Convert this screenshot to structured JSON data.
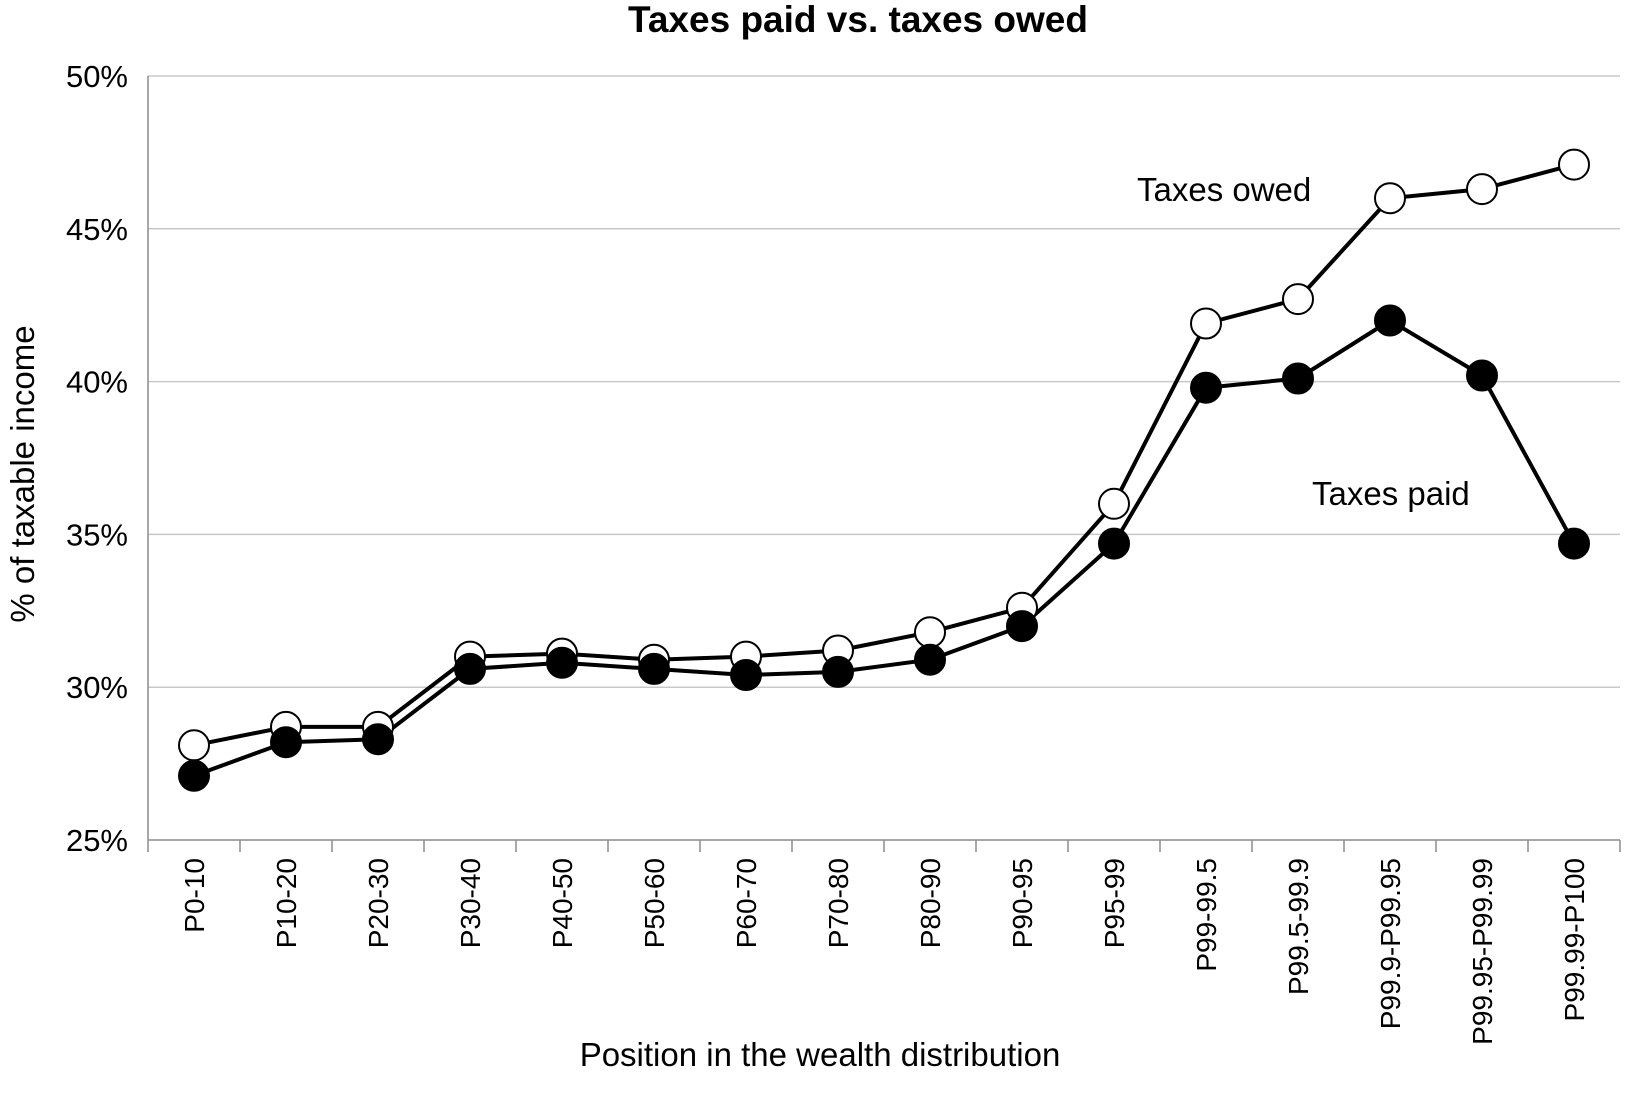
{
  "chart_data": {
    "type": "line",
    "title": "Taxes paid vs. taxes owed",
    "xlabel": "Position in the wealth distribution",
    "ylabel": "% of taxable income",
    "ylim": [
      25,
      50
    ],
    "yticks": [
      25,
      30,
      35,
      40,
      45,
      50
    ],
    "ytick_labels": [
      "25%",
      "30%",
      "35%",
      "40%",
      "45%",
      "50%"
    ],
    "grid": true,
    "categories": [
      "P0-10",
      "P10-20",
      "P20-30",
      "P30-40",
      "P40-50",
      "P50-60",
      "P60-70",
      "P70-80",
      "P80-90",
      "P90-95",
      "P95-99",
      "P99-99.5",
      "P99.5-99.9",
      "P99.9-P99.95",
      "P99.95-P99.99",
      "P99.99-P100"
    ],
    "series": [
      {
        "name": "Taxes owed",
        "marker": "open-circle",
        "color": "#000000",
        "values": [
          28.1,
          28.7,
          28.7,
          31.0,
          31.1,
          30.9,
          31.0,
          31.2,
          31.8,
          32.6,
          36.0,
          41.9,
          42.7,
          46.0,
          46.3,
          47.1
        ]
      },
      {
        "name": "Taxes paid",
        "marker": "filled-circle",
        "color": "#000000",
        "values": [
          27.1,
          28.2,
          28.3,
          30.6,
          30.8,
          30.6,
          30.4,
          30.5,
          30.9,
          32.0,
          34.7,
          39.8,
          40.1,
          42.0,
          40.2,
          34.7
        ]
      }
    ],
    "annotations": {
      "owed": "Taxes owed",
      "paid": "Taxes paid"
    }
  }
}
